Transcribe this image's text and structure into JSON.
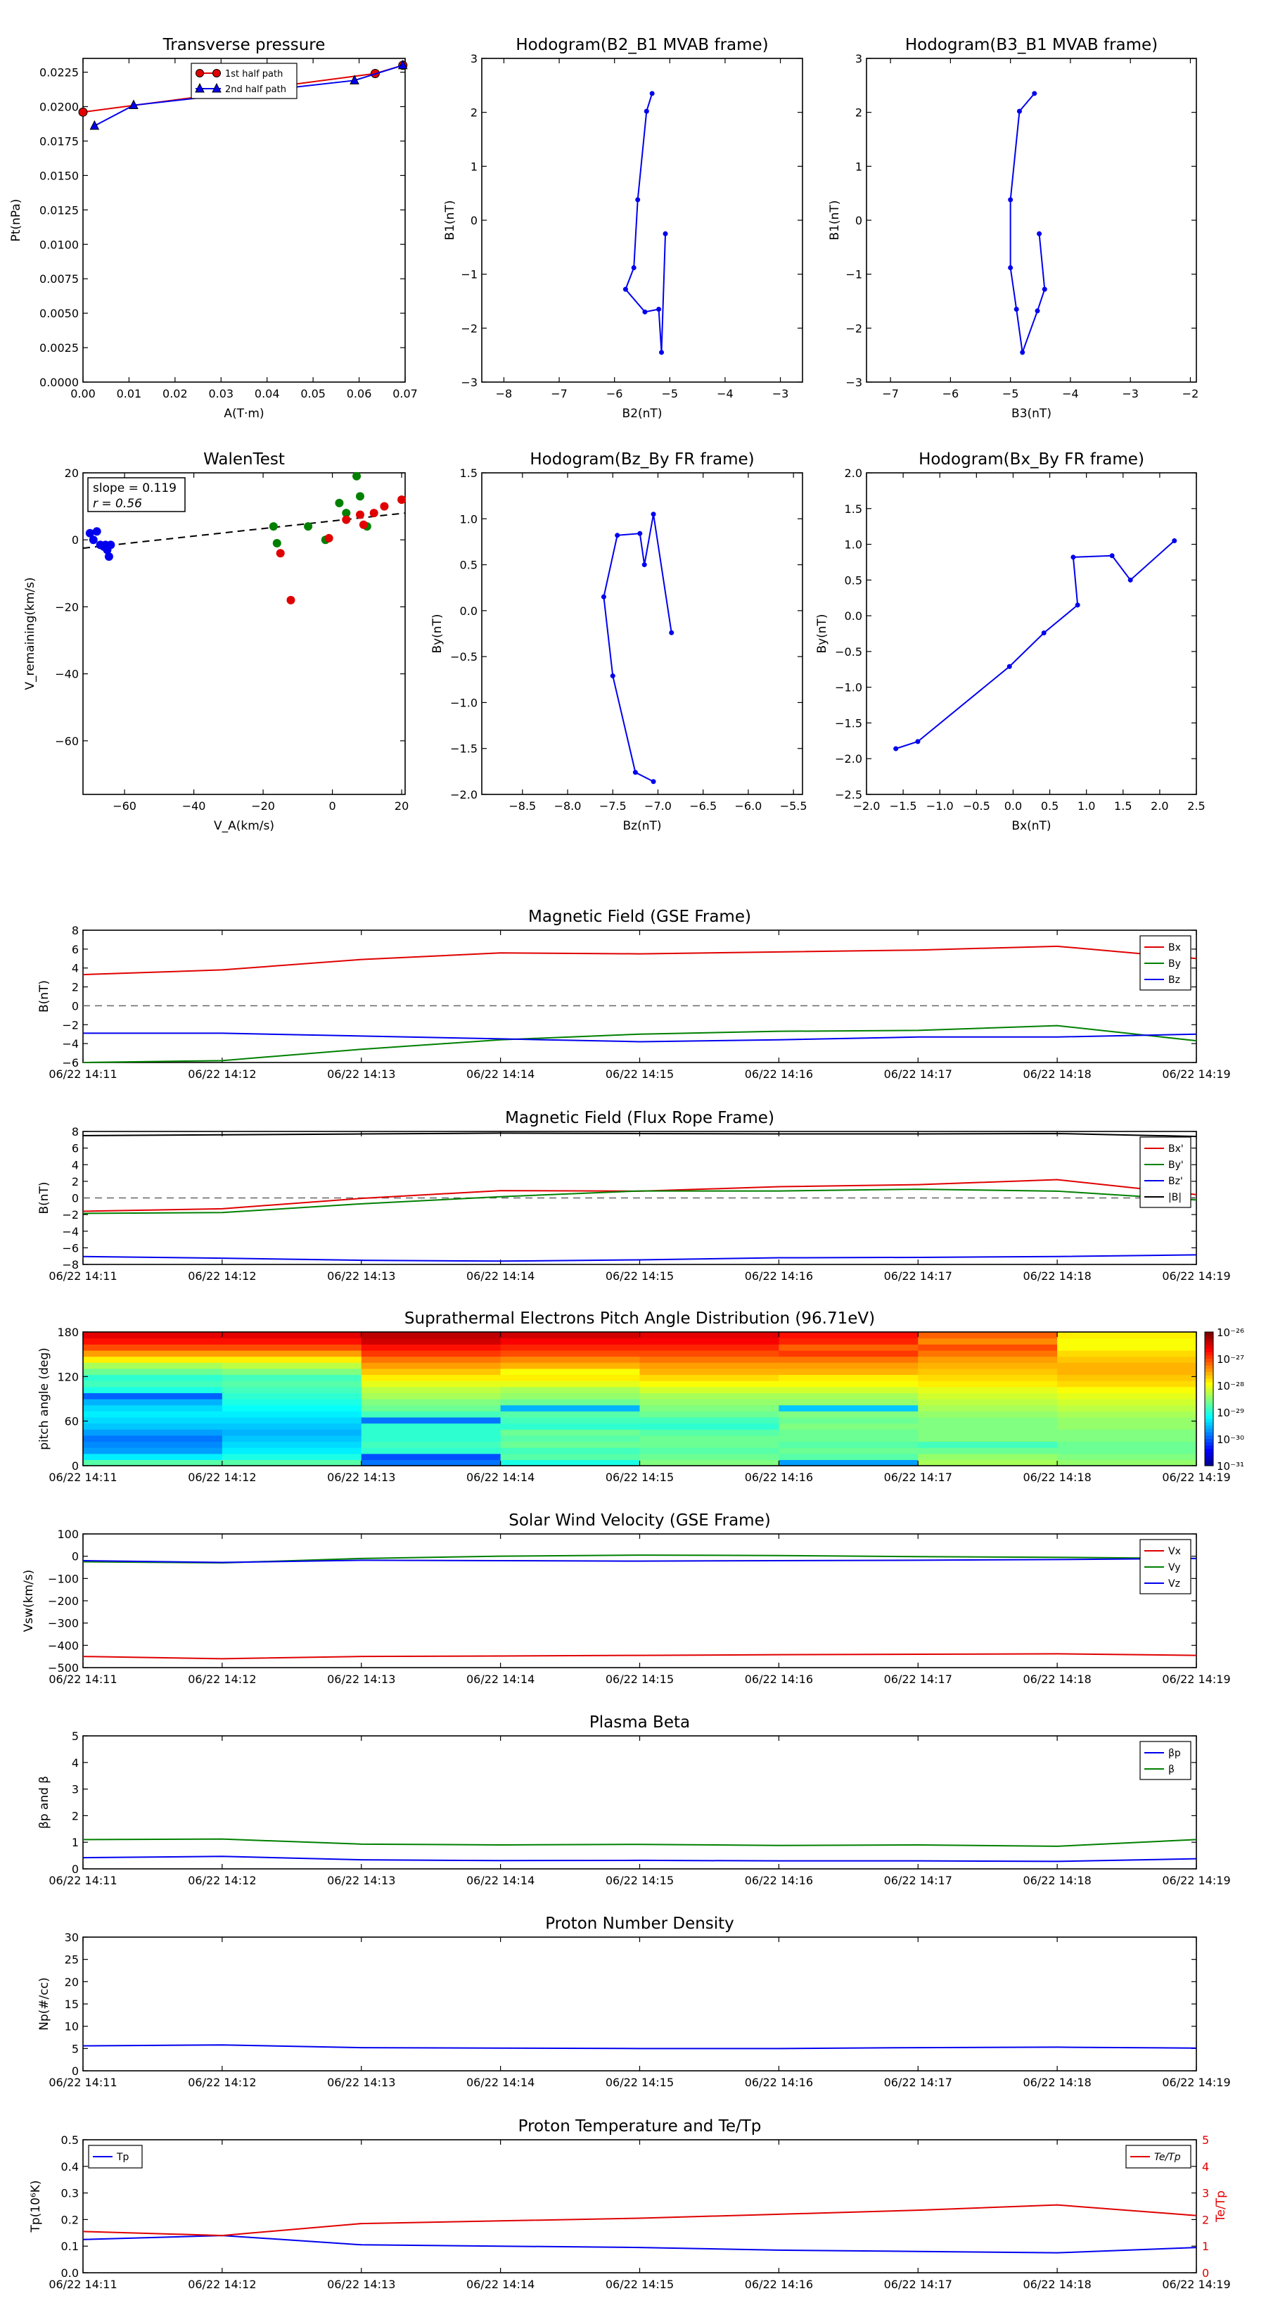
{
  "time_ticks": [
    "06/22 14:11",
    "06/22 14:12",
    "06/22 14:13",
    "06/22 14:14",
    "06/22 14:15",
    "06/22 14:16",
    "06/22 14:17",
    "06/22 14:18",
    "06/22 14:19"
  ],
  "colors": {
    "red": "#e00000",
    "green": "#008000",
    "blue": "#0000ee",
    "black": "#000000",
    "gray": "#666666"
  },
  "chart_data": [
    {
      "id": "transverse",
      "type": "line",
      "title": "Transverse pressure",
      "xlabel": "A(T·m)",
      "ylabel": "Pt(nPa)",
      "xlim": [
        0,
        0.07
      ],
      "ylim": [
        0,
        0.0235
      ],
      "xticks": [
        "0.00",
        "0.01",
        "0.02",
        "0.03",
        "0.04",
        "0.05",
        "0.06",
        "0.07"
      ],
      "yticks": [
        "0.0000",
        "0.0025",
        "0.0050",
        "0.0075",
        "0.0100",
        "0.0125",
        "0.0150",
        "0.0175",
        "0.0200",
        "0.0225"
      ],
      "legend": [
        "1st half path",
        "2nd half path"
      ],
      "series": [
        {
          "name": "1st half path",
          "color": "red",
          "marker": "circle",
          "x": [
            0.0,
            0.0635,
            0.0695
          ],
          "y": [
            0.0196,
            0.0224,
            0.023
          ]
        },
        {
          "name": "2nd half path",
          "color": "blue",
          "marker": "triangle",
          "x": [
            0.0025,
            0.011,
            0.059,
            0.0695
          ],
          "y": [
            0.0186,
            0.0201,
            0.0219,
            0.023
          ]
        }
      ]
    },
    {
      "id": "hodo1",
      "type": "line",
      "title": "Hodogram(B2_B1 MVAB frame)",
      "xlabel": "B2(nT)",
      "ylabel": "B1(nT)",
      "xlim": [
        -8.4,
        -2.6
      ],
      "ylim": [
        -3,
        3
      ],
      "xticks": [
        "−8",
        "−7",
        "−6",
        "−5",
        "−4",
        "−3"
      ],
      "yticks": [
        "−3",
        "−2",
        "−1",
        "0",
        "1",
        "2",
        "3"
      ],
      "series": [
        {
          "color": "blue",
          "x": [
            -5.08,
            -5.15,
            -5.2,
            -5.45,
            -5.8,
            -5.65,
            -5.58,
            -5.42,
            -5.32
          ],
          "y": [
            -0.25,
            -2.45,
            -1.65,
            -1.7,
            -1.28,
            -0.88,
            0.38,
            2.02,
            2.35
          ]
        }
      ]
    },
    {
      "id": "hodo2",
      "type": "line",
      "title": "Hodogram(B3_B1 MVAB frame)",
      "xlabel": "B3(nT)",
      "ylabel": "B1(nT)",
      "xlim": [
        -7.4,
        -1.9
      ],
      "ylim": [
        -3,
        3
      ],
      "xticks": [
        "−7",
        "−6",
        "−5",
        "−4",
        "−3",
        "−2"
      ],
      "yticks": [
        "−3",
        "−2",
        "−1",
        "0",
        "1",
        "2",
        "3"
      ],
      "series": [
        {
          "color": "blue",
          "x": [
            -4.52,
            -4.43,
            -4.55,
            -4.8,
            -4.9,
            -5.0,
            -5.0,
            -4.85,
            -4.6
          ],
          "y": [
            -0.25,
            -1.28,
            -1.68,
            -2.45,
            -1.65,
            -0.88,
            0.38,
            2.02,
            2.35
          ]
        }
      ]
    },
    {
      "id": "walen",
      "type": "scatter",
      "title": "WalenTest",
      "xlabel": "V_A(km/s)",
      "ylabel": "V_remaining(km/s)",
      "xlim": [
        -72,
        21
      ],
      "ylim": [
        -76,
        20
      ],
      "xticks": [
        "−60",
        "−40",
        "−20",
        "0",
        "20"
      ],
      "yticks": [
        "−60",
        "−40",
        "−20",
        "0",
        "20"
      ],
      "annotation": [
        "slope = 0.119",
        "r = 0.56"
      ],
      "fit": {
        "x": [
          -72,
          21
        ],
        "y": [
          -2.5,
          8.0
        ]
      },
      "series": [
        {
          "color": "blue",
          "x": [
            -70,
            -69,
            -68,
            -67,
            -66,
            -65.5,
            -65,
            -64.5,
            -64
          ],
          "y": [
            2,
            0,
            2.5,
            -1.5,
            -2,
            -1.5,
            -3,
            -5,
            -1.5
          ]
        },
        {
          "color": "green",
          "x": [
            -17,
            -16,
            -7,
            -2,
            2,
            4,
            7,
            8,
            10
          ],
          "y": [
            4,
            -1,
            4,
            0,
            11,
            8,
            19,
            13,
            4
          ]
        },
        {
          "color": "red",
          "x": [
            -15,
            -12,
            -1,
            4,
            8,
            9,
            12,
            15,
            20
          ],
          "y": [
            -4,
            -18,
            0.5,
            6,
            7.5,
            4.5,
            8,
            10,
            12
          ]
        }
      ]
    },
    {
      "id": "hodo3",
      "type": "line",
      "title": "Hodogram(Bz_By FR frame)",
      "xlabel": "Bz(nT)",
      "ylabel": "By(nT)",
      "xlim": [
        -8.95,
        -5.4
      ],
      "ylim": [
        -2,
        1.5
      ],
      "xticks": [
        "−8.5",
        "−8.0",
        "−7.5",
        "−7.0",
        "−6.5",
        "−6.0",
        "−5.5"
      ],
      "yticks": [
        "−2.0",
        "−1.5",
        "−1.0",
        "−0.5",
        "0.0",
        "0.5",
        "1.0",
        "1.5"
      ],
      "series": [
        {
          "color": "blue",
          "x": [
            -6.85,
            -7.05,
            -7.15,
            -7.2,
            -7.45,
            -7.6,
            -7.5,
            -7.25,
            -7.05
          ],
          "y": [
            -0.24,
            1.05,
            0.5,
            0.84,
            0.82,
            0.15,
            -0.71,
            -1.76,
            -1.86
          ]
        }
      ]
    },
    {
      "id": "hodo4",
      "type": "line",
      "title": "Hodogram(Bx_By FR frame)",
      "xlabel": "Bx(nT)",
      "ylabel": "By(nT)",
      "xlim": [
        -2,
        2.5
      ],
      "ylim": [
        -2.5,
        2
      ],
      "xticks": [
        "−2.0",
        "−1.5",
        "−1.0",
        "−0.5",
        "0.0",
        "0.5",
        "1.0",
        "1.5",
        "2.0",
        "2.5"
      ],
      "yticks": [
        "−2.5",
        "−2.0",
        "−1.5",
        "−1.0",
        "−0.5",
        "0.0",
        "0.5",
        "1.0",
        "1.5",
        "2.0"
      ],
      "series": [
        {
          "color": "blue",
          "x": [
            -1.6,
            -1.3,
            -0.05,
            0.42,
            0.88,
            0.82,
            1.35,
            1.6,
            2.2
          ],
          "y": [
            -1.86,
            -1.76,
            -0.71,
            -0.24,
            0.15,
            0.82,
            0.84,
            0.5,
            1.05
          ]
        }
      ]
    },
    {
      "id": "mag_gse",
      "type": "line",
      "title": "Magnetic Field (GSE Frame)",
      "ylabel": "B(nT)",
      "ylim": [
        -6,
        8
      ],
      "yticks": [
        "−6",
        "−4",
        "−2",
        "0",
        "2",
        "4",
        "6",
        "8"
      ],
      "zero_line": true,
      "legend": [
        "Bx",
        "By",
        "Bz"
      ],
      "series": [
        {
          "name": "Bx",
          "color": "red",
          "y": [
            3.3,
            3.8,
            4.9,
            5.6,
            5.5,
            5.7,
            5.9,
            6.3,
            5.0
          ]
        },
        {
          "name": "By",
          "color": "green",
          "y": [
            -6.0,
            -5.8,
            -4.6,
            -3.6,
            -3.0,
            -2.7,
            -2.6,
            -2.1,
            -3.7
          ]
        },
        {
          "name": "Bz",
          "color": "blue",
          "y": [
            -2.9,
            -2.9,
            -3.2,
            -3.5,
            -3.8,
            -3.6,
            -3.3,
            -3.3,
            -3.0
          ]
        }
      ]
    },
    {
      "id": "mag_fr",
      "type": "line",
      "title": "Magnetic Field (Flux Rope Frame)",
      "ylabel": "B(nT)",
      "ylim": [
        -8,
        8
      ],
      "yticks": [
        "−8",
        "−6",
        "−4",
        "−2",
        "0",
        "2",
        "4",
        "6",
        "8"
      ],
      "zero_line": true,
      "legend": [
        "Bx'",
        "By'",
        "Bz'",
        "|B|"
      ],
      "series": [
        {
          "name": "Bx'",
          "color": "red",
          "y": [
            -1.6,
            -1.3,
            -0.05,
            0.88,
            0.82,
            1.35,
            1.6,
            2.2,
            0.4
          ]
        },
        {
          "name": "By'",
          "color": "green",
          "y": [
            -1.86,
            -1.76,
            -0.71,
            0.15,
            0.84,
            0.84,
            1.05,
            0.82,
            -0.24
          ]
        },
        {
          "name": "Bz'",
          "color": "blue",
          "y": [
            -7.05,
            -7.25,
            -7.5,
            -7.6,
            -7.45,
            -7.2,
            -7.15,
            -7.05,
            -6.85
          ]
        },
        {
          "name": "|B|",
          "color": "black",
          "y": [
            7.5,
            7.6,
            7.7,
            7.8,
            7.75,
            7.7,
            7.7,
            7.75,
            7.4
          ]
        }
      ]
    },
    {
      "id": "pad",
      "type": "heatmap",
      "title": "Suprathermal Electrons Pitch Angle Distribution (96.71eV)",
      "ylabel": "pitch angle (deg)",
      "ylim": [
        0,
        180
      ],
      "yticks": [
        "0",
        "60",
        "120",
        "180"
      ],
      "colorbar_ticks": [
        "10⁻²⁶",
        "10⁻²⁷",
        "10⁻²⁸",
        "10⁻²⁹",
        "10⁻³⁰",
        "10⁻³¹"
      ],
      "colorbar_range_log10": [
        -31,
        -26
      ],
      "values_log10": [
        [
          -28.7,
          -29.2,
          -29.6,
          -29.7,
          -29.8,
          -29.6,
          -29.4,
          -29.3,
          -29.2,
          -29.3,
          -29.5,
          -29.9,
          -29.0,
          -28.8,
          -28.9,
          -28.6,
          -28.3,
          -27.8,
          -27.4,
          -27.0,
          -26.7,
          -26.5
        ],
        [
          -28.7,
          -29.0,
          -29.2,
          -29.3,
          -29.4,
          -29.5,
          -29.4,
          -29.3,
          -29.2,
          -29.1,
          -29.0,
          -28.9,
          -28.8,
          -28.7,
          -28.8,
          -28.5,
          -28.2,
          -27.8,
          -27.4,
          -27.0,
          -26.7,
          -26.5
        ],
        [
          -29.8,
          -30.0,
          -28.9,
          -28.8,
          -28.9,
          -28.9,
          -28.9,
          -29.8,
          -28.8,
          -28.6,
          -28.5,
          -28.3,
          -28.2,
          -28.0,
          -27.8,
          -27.6,
          -27.4,
          -27.2,
          -26.9,
          -26.7,
          -26.4,
          -26.3
        ],
        [
          -29.0,
          -28.7,
          -28.8,
          -28.6,
          -28.7,
          -28.6,
          -28.9,
          -28.8,
          -28.7,
          -29.5,
          -28.6,
          -28.4,
          -28.3,
          -28.0,
          -27.8,
          -27.9,
          -27.5,
          -27.3,
          -27.0,
          -26.8,
          -26.6,
          -26.4
        ],
        [
          -28.5,
          -28.6,
          -28.7,
          -28.6,
          -28.6,
          -28.7,
          -28.9,
          -28.8,
          -28.6,
          -28.5,
          -28.4,
          -28.3,
          -28.1,
          -27.9,
          -27.7,
          -27.5,
          -27.4,
          -27.2,
          -27.0,
          -26.8,
          -26.6,
          -26.5
        ],
        [
          -29.6,
          -28.7,
          -28.6,
          -28.7,
          -28.6,
          -28.6,
          -28.5,
          -28.6,
          -28.5,
          -29.4,
          -28.4,
          -28.3,
          -28.1,
          -27.9,
          -27.8,
          -27.5,
          -27.4,
          -27.2,
          -26.9,
          -27.1,
          -26.8,
          -26.7
        ],
        [
          -28.3,
          -28.4,
          -28.6,
          -28.8,
          -28.5,
          -28.5,
          -28.5,
          -28.5,
          -28.4,
          -28.3,
          -28.2,
          -28.1,
          -28.0,
          -27.8,
          -27.7,
          -27.6,
          -27.5,
          -27.4,
          -27.2,
          -27.0,
          -27.3,
          -27.1
        ],
        [
          -28.4,
          -28.5,
          -28.6,
          -28.6,
          -28.5,
          -28.5,
          -28.4,
          -28.4,
          -28.3,
          -28.2,
          -28.1,
          -28.0,
          -27.9,
          -27.7,
          -27.6,
          -27.5,
          -27.5,
          -27.6,
          -27.7,
          -27.9,
          -27.9,
          -27.8
        ]
      ]
    },
    {
      "id": "vsw",
      "type": "line",
      "title": "Solar Wind Velocity (GSE Frame)",
      "ylabel": "Vsw(km/s)",
      "ylim": [
        -500,
        100
      ],
      "yticks": [
        "−500",
        "−400",
        "−300",
        "−200",
        "−100",
        "0",
        "100"
      ],
      "legend": [
        "Vx",
        "Vy",
        "Vz"
      ],
      "series": [
        {
          "name": "Vx",
          "color": "red",
          "y": [
            -450,
            -460,
            -450,
            -448,
            -445,
            -442,
            -440,
            -438,
            -445
          ]
        },
        {
          "name": "Vy",
          "color": "green",
          "y": [
            -25,
            -30,
            -10,
            0,
            5,
            3,
            -2,
            -5,
            -10
          ]
        },
        {
          "name": "Vz",
          "color": "blue",
          "y": [
            -20,
            -28,
            -18,
            -20,
            -22,
            -20,
            -18,
            -15,
            -10
          ]
        }
      ]
    },
    {
      "id": "beta",
      "type": "line",
      "title": "Plasma Beta",
      "ylabel": "βp and β",
      "ylim": [
        0,
        5
      ],
      "yticks": [
        "0",
        "1",
        "2",
        "3",
        "4",
        "5"
      ],
      "legend": [
        "βp",
        "β"
      ],
      "series": [
        {
          "name": "βp",
          "color": "blue",
          "y": [
            0.42,
            0.47,
            0.34,
            0.31,
            0.32,
            0.3,
            0.3,
            0.28,
            0.38
          ]
        },
        {
          "name": "β",
          "color": "green",
          "y": [
            1.1,
            1.12,
            0.93,
            0.9,
            0.92,
            0.88,
            0.9,
            0.85,
            1.1
          ]
        }
      ]
    },
    {
      "id": "np",
      "type": "line",
      "title": "Proton Number Density",
      "ylabel": "Np(#/cc)",
      "ylim": [
        0,
        30
      ],
      "yticks": [
        "0",
        "5",
        "10",
        "15",
        "20",
        "25",
        "30"
      ],
      "series": [
        {
          "color": "blue",
          "y": [
            5.6,
            5.8,
            5.2,
            5.1,
            5.0,
            5.0,
            5.2,
            5.3,
            5.1
          ]
        }
      ]
    },
    {
      "id": "tp",
      "type": "line",
      "title": "Proton Temperature and Te/Tp",
      "ylabel": "Tp(10⁶K)",
      "ylabel2": "Te/Tp",
      "ylim": [
        0,
        0.5
      ],
      "ylim2": [
        0,
        5
      ],
      "yticks": [
        "0.0",
        "0.1",
        "0.2",
        "0.3",
        "0.4",
        "0.5"
      ],
      "yticks2": [
        "0",
        "1",
        "2",
        "3",
        "4",
        "5"
      ],
      "legend": [
        "Tp"
      ],
      "legend2": [
        "Te/Tp"
      ],
      "series": [
        {
          "name": "Tp",
          "color": "blue",
          "axis": 1,
          "y": [
            0.125,
            0.14,
            0.105,
            0.1,
            0.095,
            0.085,
            0.08,
            0.075,
            0.095
          ]
        },
        {
          "name": "Te/Tp",
          "color": "red",
          "axis": 2,
          "y": [
            1.55,
            1.4,
            1.85,
            1.95,
            2.05,
            2.2,
            2.35,
            2.55,
            2.15
          ]
        }
      ]
    }
  ]
}
